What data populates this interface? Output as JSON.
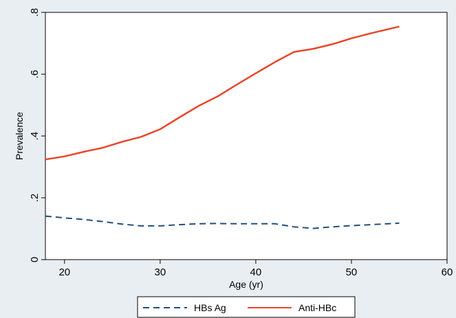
{
  "chart_data": {
    "type": "line",
    "title": "",
    "xlabel": "Age (yr)",
    "ylabel": "Prevalence",
    "xlim": [
      18,
      60
    ],
    "ylim": [
      0,
      0.8
    ],
    "x_ticks": [
      20,
      30,
      40,
      50,
      60
    ],
    "x_tick_labels": [
      "20",
      "30",
      "40",
      "50",
      "60"
    ],
    "y_ticks": [
      0,
      0.2,
      0.4,
      0.6,
      0.8
    ],
    "y_tick_labels": [
      "0",
      ".2",
      ".4",
      ".6",
      ".8"
    ],
    "grid": false,
    "legend_position": "bottom",
    "series": [
      {
        "name": "HBs Ag",
        "color": "#1f4e79",
        "dash": "dashed",
        "x": [
          18,
          20,
          22,
          24,
          26,
          28,
          30,
          32,
          34,
          36,
          38,
          40,
          42,
          44,
          46,
          48,
          50,
          52,
          55
        ],
        "y": [
          0.141,
          0.135,
          0.13,
          0.123,
          0.115,
          0.109,
          0.109,
          0.113,
          0.116,
          0.117,
          0.116,
          0.116,
          0.116,
          0.106,
          0.101,
          0.106,
          0.11,
          0.113,
          0.118
        ]
      },
      {
        "name": "Anti-HBc",
        "color": "#e8462a",
        "dash": "solid",
        "x": [
          18,
          20,
          22,
          24,
          26,
          28,
          30,
          32,
          34,
          36,
          38,
          40,
          42,
          44,
          46,
          48,
          50,
          52,
          55
        ],
        "y": [
          0.324,
          0.334,
          0.349,
          0.362,
          0.381,
          0.397,
          0.422,
          0.46,
          0.497,
          0.528,
          0.566,
          0.603,
          0.639,
          0.672,
          0.682,
          0.697,
          0.716,
          0.732,
          0.754
        ]
      }
    ]
  }
}
